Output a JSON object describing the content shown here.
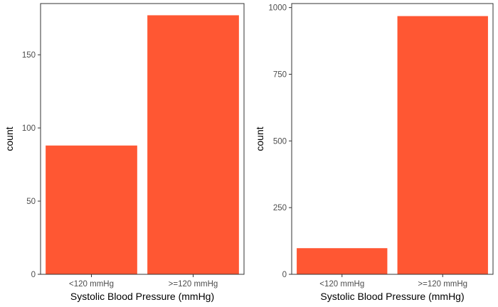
{
  "chart_data": [
    {
      "type": "bar",
      "categories": [
        "<120 mmHg",
        ">=120 mmHg"
      ],
      "values": [
        88,
        177
      ],
      "xlabel": "Systolic Blood Pressure (mmHg)",
      "ylabel": "count",
      "ylim": [
        0,
        185
      ],
      "yticks": [
        0,
        50,
        100,
        150
      ],
      "yticklabels": [
        "0",
        "50",
        "100",
        "150"
      ],
      "bar_color": "#FF5733",
      "grid": false
    },
    {
      "type": "bar",
      "categories": [
        "<120 mmHg",
        ">=120 mmHg"
      ],
      "values": [
        98,
        968
      ],
      "xlabel": "Systolic Blood Pressure (mmHg)",
      "ylabel": "count",
      "ylim": [
        0,
        1015
      ],
      "yticks": [
        0,
        250,
        500,
        750,
        1000
      ],
      "yticklabels": [
        "0",
        "250",
        "500",
        "750",
        "1000"
      ],
      "bar_color": "#FF5733",
      "grid": false
    }
  ]
}
